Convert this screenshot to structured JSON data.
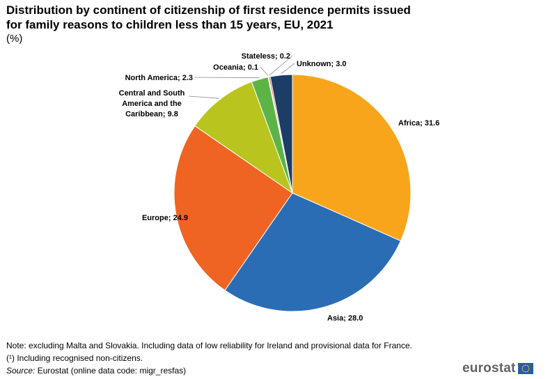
{
  "chart_data": {
    "type": "pie",
    "title_line1": "Distribution by continent of citizenship of first residence permits issued",
    "title_line2": "for family reasons to children less than 15 years, EU, 2021",
    "subtitle": "(%)",
    "slices": [
      {
        "name": "Africa",
        "value": 31.6,
        "color": "#F9A51B",
        "label": "Africa; 31.6"
      },
      {
        "name": "Asia",
        "value": 28.0,
        "color": "#2B6DB5",
        "label": "Asia; 28.0"
      },
      {
        "name": "Europe",
        "value": 24.9,
        "color": "#EF6423",
        "label": "Europe; 24.9"
      },
      {
        "name": "Central and South America and the Caribbean",
        "value": 9.8,
        "color": "#B9C41E",
        "label_lines": [
          "Central and South",
          "America and the",
          "Caribbean; 9.8"
        ]
      },
      {
        "name": "North America",
        "value": 2.3,
        "color": "#5DB446",
        "label": "North America; 2.3"
      },
      {
        "name": "Oceania",
        "value": 0.1,
        "color": "#8B9A3A",
        "label": "Oceania; 0.1"
      },
      {
        "name": "Stateless",
        "value": 0.2,
        "color": "#D45A2C",
        "label": "Stateless; 0.2"
      },
      {
        "name": "Unknown",
        "value": 3.0,
        "color": "#1C3D66",
        "label": "Unknown; 3.0"
      }
    ]
  },
  "notes": {
    "note": "Note: excluding Malta and Slovakia. Including data of low reliability for Ireland and provisional data for France.",
    "footnote": "(¹) Including recognised non-citizens.",
    "source_label": "Source:",
    "source_text": " Eurostat (online data code: migr_resfas)"
  },
  "logo": {
    "text": "eurostat"
  }
}
